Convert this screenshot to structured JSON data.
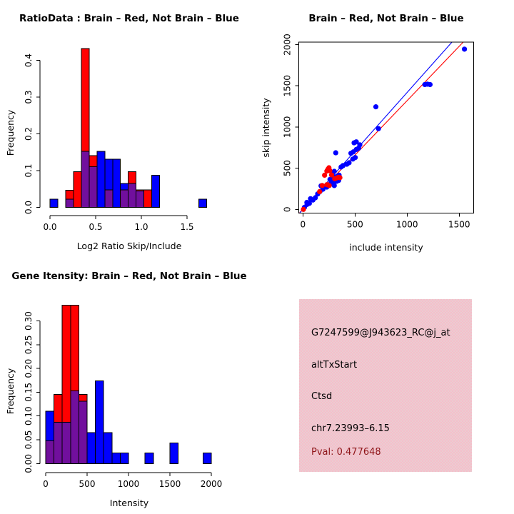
{
  "window": {
    "background": "#ffffff"
  },
  "colors": {
    "red": "#ff0000",
    "blue": "#0000ff",
    "purple": "#710f9d",
    "axis": "#000000",
    "pval_text": "#8e1418",
    "info_bg_a": "#f7bdc9",
    "info_bg_b": "#e9ced3"
  },
  "info_box": {
    "lines": [
      "G7247599@J943623_RC@j_at",
      "altTxStart",
      "Ctsd",
      "chr7.23993–6.15",
      "Pval: 0.477648"
    ]
  },
  "chart_data": [
    {
      "type": "histogram",
      "title": "RatioData : Brain – Red, Not Brain – Blue",
      "xlabel": "Log2 Ratio Skip/Include",
      "ylabel": "Frequency",
      "xlim": [
        0,
        1.75
      ],
      "ylim": [
        0,
        0.45
      ],
      "grid": false,
      "groups": {
        "red": "Brain",
        "blue": "Not Brain",
        "purple": "overlap"
      },
      "x_ticks": [
        0,
        0.5,
        1.0,
        1.5
      ],
      "x_tick_labels": [
        "0.0",
        "0.5",
        "1.0",
        "1.5"
      ],
      "y_ticks": [
        0,
        0.1,
        0.2,
        0.3,
        0.4
      ],
      "y_tick_labels": [
        "0.0",
        "0.1",
        "0.2",
        "0.3",
        "0.4"
      ],
      "bars": [
        {
          "x0": 0.0,
          "x1": 0.086,
          "segments": [
            {
              "color": "blue",
              "y0": 0,
              "y1": 0.022
            }
          ]
        },
        {
          "x0": 0.171,
          "x1": 0.257,
          "segments": [
            {
              "color": "red",
              "y0": 0,
              "y1": 0.047
            },
            {
              "color": "purple",
              "y0": 0,
              "y1": 0.022
            }
          ]
        },
        {
          "x0": 0.257,
          "x1": 0.343,
          "segments": [
            {
              "color": "red",
              "y0": 0,
              "y1": 0.097
            }
          ]
        },
        {
          "x0": 0.343,
          "x1": 0.429,
          "segments": [
            {
              "color": "red",
              "y0": 0,
              "y1": 0.432
            },
            {
              "color": "purple",
              "y0": 0,
              "y1": 0.152
            }
          ]
        },
        {
          "x0": 0.429,
          "x1": 0.514,
          "segments": [
            {
              "color": "red",
              "y0": 0,
              "y1": 0.141
            },
            {
              "color": "purple",
              "y0": 0,
              "y1": 0.111
            }
          ]
        },
        {
          "x0": 0.514,
          "x1": 0.6,
          "segments": [
            {
              "color": "blue",
              "y0": 0,
              "y1": 0.152
            }
          ]
        },
        {
          "x0": 0.6,
          "x1": 0.686,
          "segments": [
            {
              "color": "blue",
              "y0": 0,
              "y1": 0.131
            },
            {
              "color": "purple",
              "y0": 0,
              "y1": 0.048
            }
          ]
        },
        {
          "x0": 0.686,
          "x1": 0.771,
          "segments": [
            {
              "color": "blue",
              "y0": 0,
              "y1": 0.131
            }
          ]
        },
        {
          "x0": 0.771,
          "x1": 0.857,
          "segments": [
            {
              "color": "blue",
              "y0": 0,
              "y1": 0.065
            },
            {
              "color": "purple",
              "y0": 0,
              "y1": 0.048
            }
          ]
        },
        {
          "x0": 0.857,
          "x1": 0.943,
          "segments": [
            {
              "color": "red",
              "y0": 0,
              "y1": 0.097
            },
            {
              "color": "purple",
              "y0": 0,
              "y1": 0.065
            }
          ]
        },
        {
          "x0": 0.943,
          "x1": 1.029,
          "segments": [
            {
              "color": "red",
              "y0": 0,
              "y1": 0.048
            },
            {
              "color": "purple",
              "y0": 0,
              "y1": 0.045
            }
          ]
        },
        {
          "x0": 1.029,
          "x1": 1.114,
          "segments": [
            {
              "color": "red",
              "y0": 0,
              "y1": 0.048
            }
          ]
        },
        {
          "x0": 1.114,
          "x1": 1.2,
          "segments": [
            {
              "color": "blue",
              "y0": 0,
              "y1": 0.087
            }
          ]
        },
        {
          "x0": 1.629,
          "x1": 1.714,
          "segments": [
            {
              "color": "blue",
              "y0": 0,
              "y1": 0.022
            }
          ]
        }
      ]
    },
    {
      "type": "scatter",
      "title": "Brain – Red, Not Brain – Blue",
      "xlabel": "include intensity",
      "ylabel": "skip intensity",
      "xlim": [
        0,
        1637
      ],
      "ylim": [
        0,
        2030
      ],
      "grid": false,
      "x_ticks": [
        0,
        500,
        1000,
        1500
      ],
      "x_tick_labels": [
        "0",
        "500",
        "1000",
        "1500"
      ],
      "y_ticks": [
        0,
        500,
        1000,
        1500,
        2000
      ],
      "y_tick_labels": [
        "0",
        "500",
        "1000",
        "1500",
        "2000"
      ],
      "lines": [
        {
          "color": "red",
          "x": [
            -33,
            1538
          ],
          "y": [
            -43,
            2030
          ]
        },
        {
          "color": "blue",
          "x": [
            -30,
            1430
          ],
          "y": [
            -43,
            2030
          ]
        }
      ],
      "series": [
        {
          "name": "Not Brain",
          "color": "blue",
          "points": [
            [
              15,
              25
            ],
            [
              38,
              85
            ],
            [
              40,
              60
            ],
            [
              62,
              73
            ],
            [
              73,
              130
            ],
            [
              96,
              113
            ],
            [
              119,
              141
            ],
            [
              142,
              187
            ],
            [
              164,
              217
            ],
            [
              174,
              286
            ],
            [
              192,
              245
            ],
            [
              210,
              274
            ],
            [
              229,
              271
            ],
            [
              251,
              289
            ],
            [
              260,
              364
            ],
            [
              270,
              312
            ],
            [
              279,
              352
            ],
            [
              279,
              381
            ],
            [
              284,
              445
            ],
            [
              293,
              323
            ],
            [
              301,
              289
            ],
            [
              301,
              393
            ],
            [
              301,
              462
            ],
            [
              315,
              687
            ],
            [
              325,
              341
            ],
            [
              329,
              404
            ],
            [
              343,
              352
            ],
            [
              347,
              416
            ],
            [
              366,
              514
            ],
            [
              384,
              531
            ],
            [
              421,
              548
            ],
            [
              443,
              566
            ],
            [
              461,
              681
            ],
            [
              479,
              611
            ],
            [
              484,
              698
            ],
            [
              502,
              629
            ],
            [
              512,
              727
            ],
            [
              535,
              744
            ],
            [
              491,
              808
            ],
            [
              512,
              820
            ],
            [
              546,
              784
            ],
            [
              700,
              1245
            ],
            [
              725,
              980
            ],
            [
              1170,
              1515
            ],
            [
              1195,
              1520
            ],
            [
              1220,
              1515
            ],
            [
              1550,
              1945
            ]
          ]
        },
        {
          "name": "Brain",
          "color": "red",
          "points": [
            [
              5,
              0
            ],
            [
              160,
              215
            ],
            [
              185,
              290
            ],
            [
              230,
              300
            ],
            [
              252,
              290
            ],
            [
              208,
              415
            ],
            [
              230,
              465
            ],
            [
              240,
              488
            ],
            [
              250,
              505
            ],
            [
              258,
              470
            ],
            [
              275,
              418
            ],
            [
              305,
              372
            ],
            [
              325,
              382
            ],
            [
              342,
              390
            ],
            [
              355,
              385
            ]
          ]
        }
      ]
    },
    {
      "type": "histogram",
      "title": "Gene Itensity: Brain – Red, Not Brain – Blue",
      "xlabel": "Intensity",
      "ylabel": "Frequency",
      "xlim": [
        0,
        2000
      ],
      "ylim": [
        0,
        0.34
      ],
      "grid": false,
      "groups": {
        "red": "Brain",
        "blue": "Not Brain",
        "purple": "overlap"
      },
      "x_ticks": [
        0,
        500,
        1000,
        1500,
        2000
      ],
      "x_tick_labels": [
        "0",
        "500",
        "1000",
        "1500",
        "2000"
      ],
      "y_ticks": [
        0,
        0.05,
        0.1,
        0.15,
        0.2,
        0.25,
        0.3
      ],
      "y_tick_labels": [
        "0.00",
        "0.05",
        "0.10",
        "0.15",
        "0.20",
        "0.25",
        "0.30"
      ],
      "bars": [
        {
          "x0": 0,
          "x1": 100,
          "segments": [
            {
              "color": "blue",
              "y0": 0,
              "y1": 0.11
            },
            {
              "color": "purple",
              "y0": 0,
              "y1": 0.048
            }
          ]
        },
        {
          "x0": 100,
          "x1": 200,
          "segments": [
            {
              "color": "red",
              "y0": 0,
              "y1": 0.145
            },
            {
              "color": "purple",
              "y0": 0,
              "y1": 0.087
            }
          ]
        },
        {
          "x0": 200,
          "x1": 300,
          "segments": [
            {
              "color": "red",
              "y0": 0,
              "y1": 0.333
            },
            {
              "color": "purple",
              "y0": 0,
              "y1": 0.087
            }
          ]
        },
        {
          "x0": 300,
          "x1": 400,
          "segments": [
            {
              "color": "red",
              "y0": 0,
              "y1": 0.333
            },
            {
              "color": "purple",
              "y0": 0,
              "y1": 0.153
            }
          ]
        },
        {
          "x0": 400,
          "x1": 500,
          "segments": [
            {
              "color": "red",
              "y0": 0,
              "y1": 0.145
            },
            {
              "color": "purple",
              "y0": 0,
              "y1": 0.131
            }
          ]
        },
        {
          "x0": 500,
          "x1": 600,
          "segments": [
            {
              "color": "blue",
              "y0": 0,
              "y1": 0.065
            }
          ]
        },
        {
          "x0": 600,
          "x1": 700,
          "segments": [
            {
              "color": "blue",
              "y0": 0,
              "y1": 0.174
            }
          ]
        },
        {
          "x0": 700,
          "x1": 800,
          "segments": [
            {
              "color": "blue",
              "y0": 0,
              "y1": 0.065
            }
          ]
        },
        {
          "x0": 800,
          "x1": 900,
          "segments": [
            {
              "color": "blue",
              "y0": 0,
              "y1": 0.022
            }
          ]
        },
        {
          "x0": 900,
          "x1": 1000,
          "segments": [
            {
              "color": "blue",
              "y0": 0,
              "y1": 0.022
            }
          ]
        },
        {
          "x0": 1200,
          "x1": 1300,
          "segments": [
            {
              "color": "blue",
              "y0": 0,
              "y1": 0.022
            }
          ]
        },
        {
          "x0": 1500,
          "x1": 1600,
          "segments": [
            {
              "color": "blue",
              "y0": 0,
              "y1": 0.043
            }
          ]
        },
        {
          "x0": 1900,
          "x1": 2000,
          "segments": [
            {
              "color": "blue",
              "y0": 0,
              "y1": 0.022
            }
          ]
        }
      ]
    }
  ]
}
